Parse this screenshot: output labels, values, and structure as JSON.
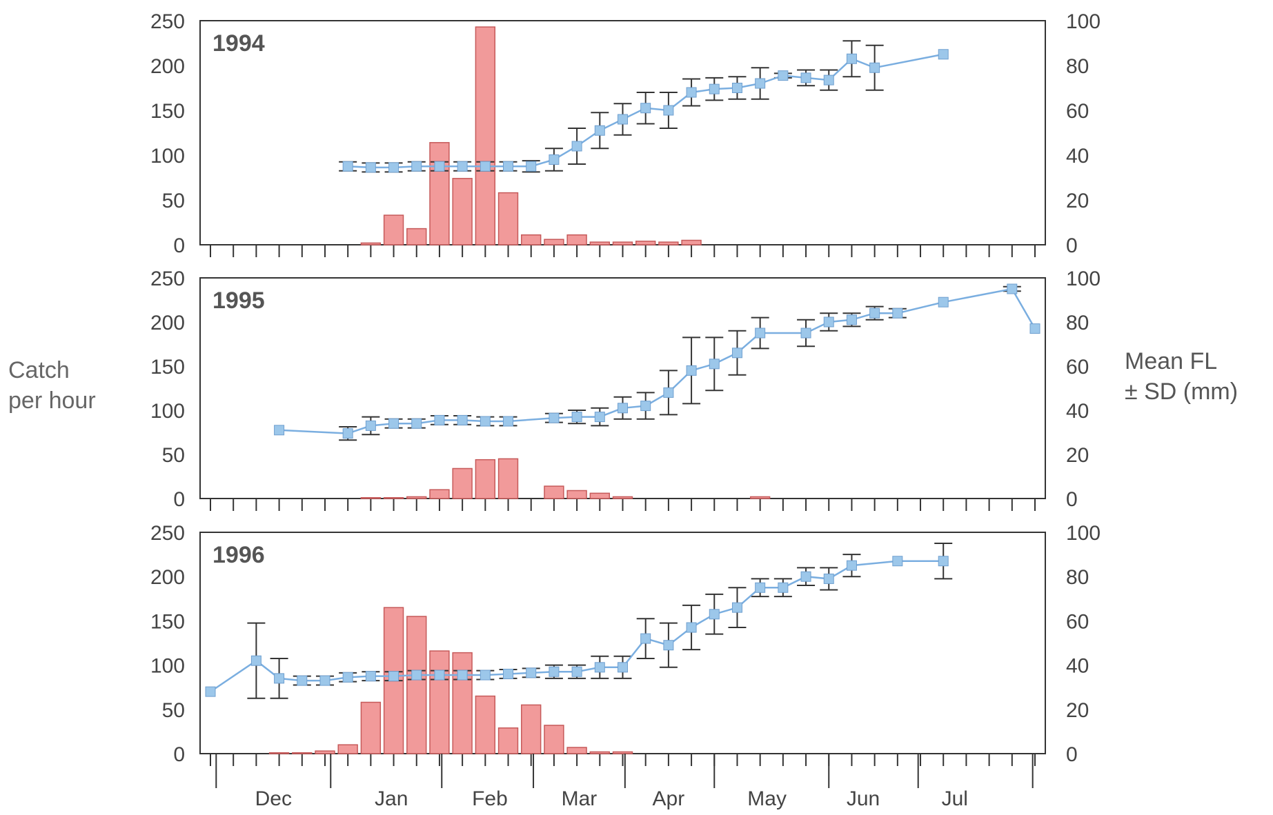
{
  "labels": {
    "y_left": [
      "Catch",
      "per hour"
    ],
    "y_right": [
      "Mean FL",
      "± SD  (mm)"
    ]
  },
  "colors": {
    "bar_fill": "#f19a9a",
    "bar_stroke": "#c65a5a",
    "line": "#7aaee0",
    "marker": "#9cc7ea",
    "error_bar": "#333333",
    "frame": "#333333"
  },
  "chart_data": [
    {
      "type": "bar+line",
      "panel_label": "1994",
      "x_unit": "week",
      "xlim": [
        0,
        36
      ],
      "left_axis": {
        "ylim": [
          0,
          250
        ],
        "ticks": [
          0,
          50,
          100,
          150,
          200,
          250
        ]
      },
      "right_axis": {
        "ylim": [
          0,
          100
        ],
        "ticks": [
          0,
          20,
          40,
          60,
          80,
          100
        ]
      },
      "catch_per_hour": [
        {
          "x": 7,
          "y": 2
        },
        {
          "x": 8,
          "y": 33
        },
        {
          "x": 9,
          "y": 18
        },
        {
          "x": 10,
          "y": 114
        },
        {
          "x": 11,
          "y": 74
        },
        {
          "x": 12,
          "y": 243
        },
        {
          "x": 13,
          "y": 58
        },
        {
          "x": 14,
          "y": 11
        },
        {
          "x": 15,
          "y": 6
        },
        {
          "x": 16,
          "y": 11
        },
        {
          "x": 17,
          "y": 3
        },
        {
          "x": 18,
          "y": 3
        },
        {
          "x": 19,
          "y": 4
        },
        {
          "x": 20,
          "y": 3
        },
        {
          "x": 21,
          "y": 5
        }
      ],
      "mean_fl": [
        {
          "x": 6,
          "y": 35,
          "sd": 2
        },
        {
          "x": 7,
          "y": 34.5,
          "sd": 2
        },
        {
          "x": 8,
          "y": 34.5,
          "sd": 2
        },
        {
          "x": 9,
          "y": 35,
          "sd": 2
        },
        {
          "x": 10,
          "y": 35,
          "sd": 2
        },
        {
          "x": 11,
          "y": 35,
          "sd": 2
        },
        {
          "x": 12,
          "y": 35,
          "sd": 2
        },
        {
          "x": 13,
          "y": 35,
          "sd": 2
        },
        {
          "x": 14,
          "y": 35,
          "sd": 2.5
        },
        {
          "x": 15,
          "y": 38,
          "sd": 5
        },
        {
          "x": 16,
          "y": 44,
          "sd": 8
        },
        {
          "x": 17,
          "y": 51,
          "sd": 8
        },
        {
          "x": 18,
          "y": 56,
          "sd": 7
        },
        {
          "x": 19,
          "y": 61,
          "sd": 7
        },
        {
          "x": 20,
          "y": 60,
          "sd": 8
        },
        {
          "x": 21,
          "y": 68,
          "sd": 6
        },
        {
          "x": 22,
          "y": 69.5,
          "sd": 5
        },
        {
          "x": 23,
          "y": 70,
          "sd": 5
        },
        {
          "x": 24,
          "y": 72,
          "sd": 7
        },
        {
          "x": 25,
          "y": 75.5,
          "sd": 1
        },
        {
          "x": 26,
          "y": 74.5,
          "sd": 3.5
        },
        {
          "x": 27,
          "y": 73.5,
          "sd": 4.5
        },
        {
          "x": 28,
          "y": 83,
          "sd": 8
        },
        {
          "x": 29,
          "y": 79,
          "sd": 10
        },
        {
          "x": 32,
          "y": 85,
          "sd": 0
        }
      ]
    },
    {
      "type": "bar+line",
      "panel_label": "1995",
      "x_unit": "week",
      "xlim": [
        0,
        36
      ],
      "left_axis": {
        "ylim": [
          0,
          250
        ],
        "ticks": [
          0,
          50,
          100,
          150,
          200,
          250
        ]
      },
      "right_axis": {
        "ylim": [
          0,
          100
        ],
        "ticks": [
          0,
          20,
          40,
          60,
          80,
          100
        ]
      },
      "catch_per_hour": [
        {
          "x": 7,
          "y": 1
        },
        {
          "x": 8,
          "y": 1
        },
        {
          "x": 9,
          "y": 2
        },
        {
          "x": 10,
          "y": 10
        },
        {
          "x": 11,
          "y": 34
        },
        {
          "x": 12,
          "y": 44
        },
        {
          "x": 13,
          "y": 45
        },
        {
          "x": 15,
          "y": 14
        },
        {
          "x": 16,
          "y": 9
        },
        {
          "x": 17,
          "y": 6
        },
        {
          "x": 18,
          "y": 2
        },
        {
          "x": 24,
          "y": 2
        }
      ],
      "mean_fl": [
        {
          "x": 3,
          "y": 31,
          "sd": 0
        },
        {
          "x": 6,
          "y": 29.5,
          "sd": 3
        },
        {
          "x": 7,
          "y": 33,
          "sd": 4
        },
        {
          "x": 8,
          "y": 34,
          "sd": 2
        },
        {
          "x": 9,
          "y": 34,
          "sd": 2
        },
        {
          "x": 10,
          "y": 35.5,
          "sd": 2
        },
        {
          "x": 11,
          "y": 35.5,
          "sd": 2
        },
        {
          "x": 12,
          "y": 35,
          "sd": 2
        },
        {
          "x": 13,
          "y": 35,
          "sd": 2
        },
        {
          "x": 15,
          "y": 36.5,
          "sd": 2
        },
        {
          "x": 16,
          "y": 37,
          "sd": 3
        },
        {
          "x": 17,
          "y": 37,
          "sd": 4
        },
        {
          "x": 18,
          "y": 41,
          "sd": 5
        },
        {
          "x": 19,
          "y": 42,
          "sd": 6
        },
        {
          "x": 20,
          "y": 48,
          "sd": 10
        },
        {
          "x": 21,
          "y": 58,
          "sd": 15
        },
        {
          "x": 22,
          "y": 61,
          "sd": 12
        },
        {
          "x": 23,
          "y": 66,
          "sd": 10
        },
        {
          "x": 24,
          "y": 75,
          "sd": 7
        },
        {
          "x": 26,
          "y": 75,
          "sd": 6
        },
        {
          "x": 27,
          "y": 80,
          "sd": 4
        },
        {
          "x": 28,
          "y": 81,
          "sd": 3
        },
        {
          "x": 29,
          "y": 84,
          "sd": 3
        },
        {
          "x": 30,
          "y": 84,
          "sd": 2
        },
        {
          "x": 32,
          "y": 89,
          "sd": 0
        },
        {
          "x": 35,
          "y": 95,
          "sd": 1
        },
        {
          "x": 36,
          "y": 77,
          "sd": 0
        }
      ]
    },
    {
      "type": "bar+line",
      "panel_label": "1996",
      "x_unit": "week",
      "xlim": [
        0,
        36
      ],
      "left_axis": {
        "ylim": [
          0,
          250
        ],
        "ticks": [
          0,
          50,
          100,
          150,
          200,
          250
        ]
      },
      "right_axis": {
        "ylim": [
          0,
          100
        ],
        "ticks": [
          0,
          20,
          40,
          60,
          80,
          100
        ]
      },
      "month_ticks": [
        {
          "label": "Dec",
          "x": 2.75
        },
        {
          "label": "Jan",
          "x": 7.9
        },
        {
          "label": "Feb",
          "x": 12.2
        },
        {
          "label": "Mar",
          "x": 16.1
        },
        {
          "label": "Apr",
          "x": 20.0
        },
        {
          "label": "May",
          "x": 24.3
        },
        {
          "label": "Jun",
          "x": 28.5
        },
        {
          "label": "Jul",
          "x": 32.5
        }
      ],
      "month_boundaries": [
        0.25,
        5.25,
        10.1,
        14.1,
        18.1,
        22.0,
        27.0,
        30.9,
        35.9
      ],
      "catch_per_hour": [
        {
          "x": 3,
          "y": 1
        },
        {
          "x": 4,
          "y": 1
        },
        {
          "x": 5,
          "y": 3
        },
        {
          "x": 6,
          "y": 10
        },
        {
          "x": 7,
          "y": 58
        },
        {
          "x": 8,
          "y": 165
        },
        {
          "x": 9,
          "y": 155
        },
        {
          "x": 10,
          "y": 116
        },
        {
          "x": 11,
          "y": 114
        },
        {
          "x": 12,
          "y": 65
        },
        {
          "x": 13,
          "y": 29
        },
        {
          "x": 14,
          "y": 55
        },
        {
          "x": 15,
          "y": 32
        },
        {
          "x": 16,
          "y": 7
        },
        {
          "x": 17,
          "y": 2
        },
        {
          "x": 18,
          "y": 2
        }
      ],
      "mean_fl": [
        {
          "x": 0,
          "y": 28,
          "sd": 0
        },
        {
          "x": 2,
          "y": 42,
          "sd": 17
        },
        {
          "x": 3,
          "y": 34,
          "sd": 9
        },
        {
          "x": 4,
          "y": 33,
          "sd": 2
        },
        {
          "x": 5,
          "y": 33,
          "sd": 2
        },
        {
          "x": 6,
          "y": 34.5,
          "sd": 2
        },
        {
          "x": 7,
          "y": 35,
          "sd": 2
        },
        {
          "x": 8,
          "y": 35,
          "sd": 2
        },
        {
          "x": 9,
          "y": 35.5,
          "sd": 2
        },
        {
          "x": 10,
          "y": 35.5,
          "sd": 2
        },
        {
          "x": 11,
          "y": 35.5,
          "sd": 2
        },
        {
          "x": 12,
          "y": 35.5,
          "sd": 2
        },
        {
          "x": 13,
          "y": 36,
          "sd": 2
        },
        {
          "x": 14,
          "y": 36.5,
          "sd": 2
        },
        {
          "x": 15,
          "y": 37,
          "sd": 3
        },
        {
          "x": 16,
          "y": 37,
          "sd": 3
        },
        {
          "x": 17,
          "y": 39,
          "sd": 5
        },
        {
          "x": 18,
          "y": 39,
          "sd": 5
        },
        {
          "x": 19,
          "y": 52,
          "sd": 9
        },
        {
          "x": 20,
          "y": 49,
          "sd": 10
        },
        {
          "x": 21,
          "y": 57,
          "sd": 10
        },
        {
          "x": 22,
          "y": 63,
          "sd": 9
        },
        {
          "x": 23,
          "y": 66,
          "sd": 9
        },
        {
          "x": 24,
          "y": 75,
          "sd": 4
        },
        {
          "x": 25,
          "y": 75,
          "sd": 4
        },
        {
          "x": 26,
          "y": 80,
          "sd": 4
        },
        {
          "x": 27,
          "y": 79,
          "sd": 5
        },
        {
          "x": 28,
          "y": 85,
          "sd": 5
        },
        {
          "x": 30,
          "y": 87,
          "sd": 0
        },
        {
          "x": 32,
          "y": 87,
          "sd": 8
        }
      ]
    }
  ]
}
